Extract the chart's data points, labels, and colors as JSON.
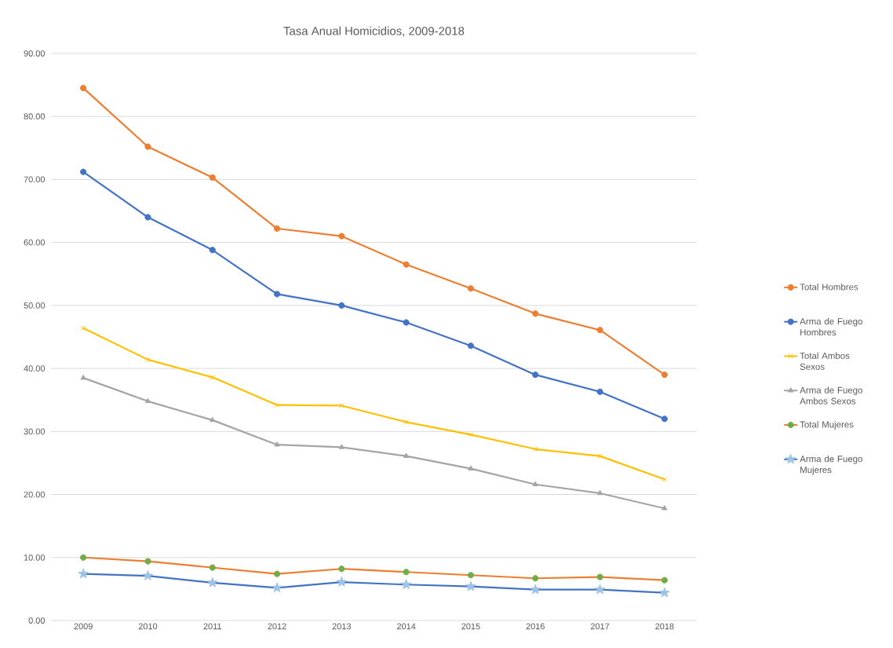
{
  "chart_data": {
    "type": "line",
    "title": "Tasa Anual Homicidios, 2009-2018",
    "categories": [
      "2009",
      "2010",
      "2011",
      "2012",
      "2013",
      "2014",
      "2015",
      "2016",
      "2017",
      "2018"
    ],
    "series": [
      {
        "name": "Total Hombres",
        "color": "#ed7d31",
        "marker": "circle",
        "values": [
          84.5,
          75.2,
          70.3,
          62.2,
          61.0,
          56.5,
          52.7,
          48.7,
          46.1,
          39.0
        ]
      },
      {
        "name": "Arma de Fuego Hombres",
        "color": "#4472c4",
        "marker": "circle",
        "values": [
          71.2,
          64.0,
          58.8,
          51.8,
          50.0,
          47.3,
          43.6,
          39.0,
          36.3,
          32.0
        ]
      },
      {
        "name": "Total Ambos Sexos",
        "color": "#ffc000",
        "marker": "cross",
        "values": [
          46.4,
          41.4,
          38.6,
          34.2,
          34.1,
          31.5,
          29.5,
          27.2,
          26.1,
          22.4
        ]
      },
      {
        "name": "Arma de Fuego Ambos Sexos",
        "color": "#a5a5a5",
        "marker": "triangle",
        "values": [
          38.5,
          34.8,
          31.8,
          27.9,
          27.5,
          26.1,
          24.1,
          21.6,
          20.2,
          17.8
        ]
      },
      {
        "name": "Total Mujeres",
        "color": "#ed7d31",
        "marker": "circle",
        "colors": [
          "#70ad47",
          "#70ad47",
          "#70ad47",
          "#70ad47",
          "#70ad47",
          "#70ad47",
          "#70ad47",
          "#70ad47",
          "#70ad47",
          "#70ad47"
        ],
        "values": [
          10.0,
          9.4,
          8.4,
          7.4,
          8.2,
          7.7,
          7.2,
          6.7,
          6.9,
          6.4
        ]
      },
      {
        "name": "Arma de Fuego Mujeres",
        "color": "#4472c4",
        "marker": "star",
        "colors": [
          "#9dc3e6",
          "#9dc3e6",
          "#9dc3e6",
          "#9dc3e6",
          "#9dc3e6",
          "#9dc3e6",
          "#9dc3e6",
          "#9dc3e6",
          "#9dc3e6",
          "#9dc3e6"
        ],
        "values": [
          7.4,
          7.1,
          6.0,
          5.2,
          6.1,
          5.7,
          5.4,
          4.9,
          4.9,
          4.4
        ]
      }
    ],
    "ylim": [
      0,
      90
    ],
    "yticks": [
      {
        "value": 0,
        "label": "0.00"
      },
      {
        "value": 10,
        "label": "10.00"
      },
      {
        "value": 20,
        "label": "20.00"
      },
      {
        "value": 30,
        "label": "30.00"
      },
      {
        "value": 40,
        "label": "40.00"
      },
      {
        "value": 50,
        "label": "50.00"
      },
      {
        "value": 60,
        "label": "60.00"
      },
      {
        "value": 70,
        "label": "70.00"
      },
      {
        "value": 80,
        "label": "80.00"
      },
      {
        "value": 90,
        "label": "90.00"
      }
    ],
    "grid": "y",
    "legend": "right"
  }
}
